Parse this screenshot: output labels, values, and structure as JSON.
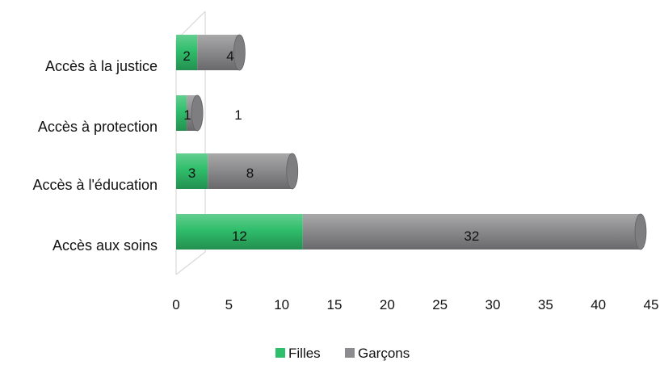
{
  "chart_data": {
    "type": "bar",
    "orientation": "horizontal",
    "stacked": true,
    "style": "3d-cylinder",
    "categories": [
      "Accès à la justice",
      "Accès à protection",
      "Accès à l'éducation",
      "Accès aux soins"
    ],
    "series": [
      {
        "name": "Filles",
        "values": [
          2,
          1,
          3,
          12
        ],
        "color": "#2fbe6b"
      },
      {
        "name": "Garçons",
        "values": [
          4,
          1,
          8,
          32
        ],
        "color": "#8c8c8e"
      }
    ],
    "xlim": [
      0,
      45
    ],
    "xticks": [
      0,
      5,
      10,
      15,
      20,
      25,
      30,
      35,
      40,
      45
    ],
    "title": "",
    "xlabel": "",
    "ylabel": "",
    "grid": false,
    "legend_position": "bottom"
  },
  "legend": {
    "items": [
      {
        "label": "Filles",
        "color": "#2fbe6b"
      },
      {
        "label": "Garçons",
        "color": "#8c8c8e"
      }
    ]
  }
}
